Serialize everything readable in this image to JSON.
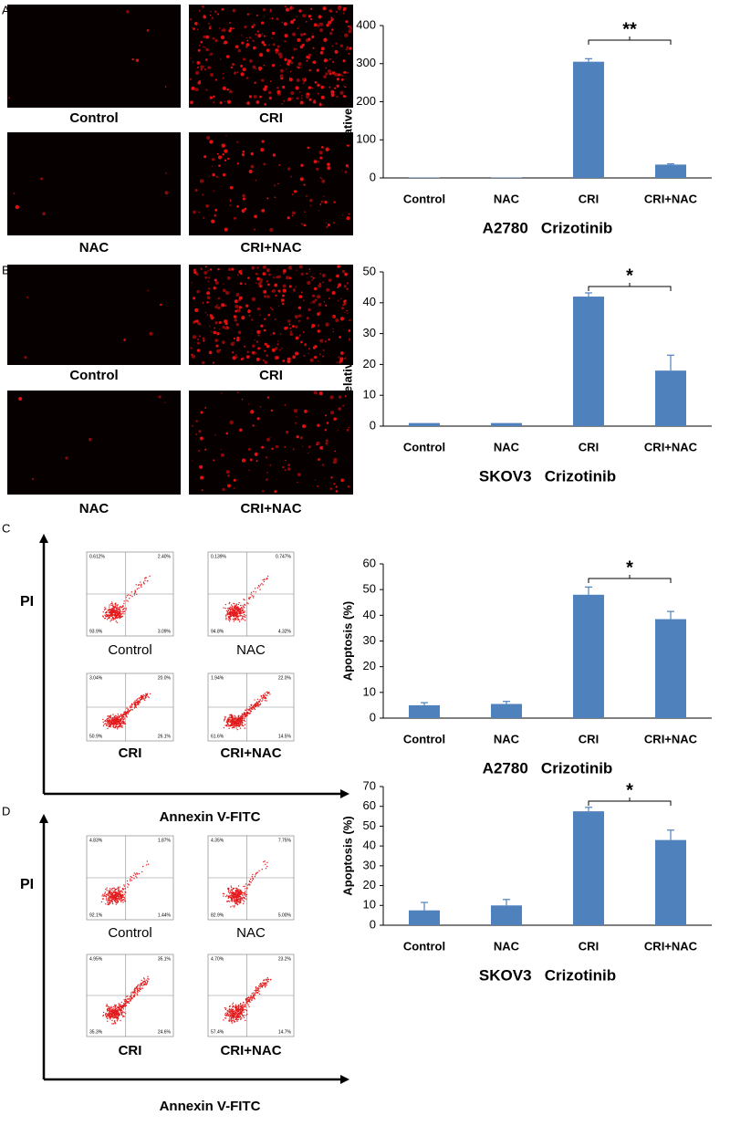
{
  "panels": [
    {
      "letter": "A",
      "image_labels": [
        "Control",
        "CRI",
        "NAC",
        "CRI+NAC"
      ]
    },
    {
      "letter": "B",
      "image_labels": [
        "Control",
        "CRI",
        "NAC",
        "CRI+NAC"
      ]
    },
    {
      "letter": "C",
      "image_labels": [
        "Control",
        "NAC",
        "CRI",
        "CRI+NAC"
      ],
      "y_axis": "PI",
      "x_axis": "Annexin V-FITC",
      "quadrants": [
        [
          "0.612%",
          "2.40%",
          "93.9%",
          "3.09%"
        ],
        [
          "0.139%",
          "0.747%",
          "94.8%",
          "4.32%"
        ],
        [
          "3.04%",
          "20.0%",
          "50.9%",
          "26.1%"
        ],
        [
          "1.94%",
          "22.0%",
          "61.6%",
          "14.5%"
        ]
      ]
    },
    {
      "letter": "D",
      "image_labels": [
        "Control",
        "NAC",
        "CRI",
        "CRI+NAC"
      ],
      "y_axis": "PI",
      "x_axis": "Annexin V-FITC",
      "quadrants": [
        [
          "4.83%",
          "1.87%",
          "92.1%",
          "1.44%"
        ],
        [
          "4.35%",
          "7.75%",
          "82.9%",
          "5.00%"
        ],
        [
          "4.95%",
          "35.1%",
          "35.3%",
          "24.6%"
        ],
        [
          "4.70%",
          "23.2%",
          "57.4%",
          "14.7%"
        ]
      ]
    }
  ],
  "chart_data": [
    {
      "type": "bar",
      "ylabel": "Relative ROS level",
      "xlabel": "A2780   Crizotinib",
      "categories": [
        "Control",
        "NAC",
        "CRI",
        "CRI+NAC"
      ],
      "values": [
        1,
        1,
        305,
        35
      ],
      "errors": [
        0,
        0,
        8,
        2
      ],
      "color": "#4f81bd",
      "ylim": [
        0,
        400
      ],
      "yticks": [
        0,
        100,
        200,
        300,
        400
      ],
      "annotation": "**"
    },
    {
      "type": "bar",
      "ylabel": "Relative ROS level",
      "xlabel": "SKOV3   Crizotinib",
      "categories": [
        "Control",
        "NAC",
        "CRI",
        "CRI+NAC"
      ],
      "values": [
        1,
        1,
        42,
        18
      ],
      "errors": [
        0,
        0,
        1.2,
        5
      ],
      "color": "#4f81bd",
      "ylim": [
        0,
        50
      ],
      "yticks": [
        0,
        10,
        20,
        30,
        40,
        50
      ],
      "annotation": "*"
    },
    {
      "type": "bar",
      "ylabel": "Apoptosis (%)",
      "xlabel": "A2780   Crizotinib",
      "categories": [
        "Control",
        "NAC",
        "CRI",
        "CRI+NAC"
      ],
      "values": [
        5,
        5.5,
        48,
        38.5
      ],
      "errors": [
        1,
        1,
        3,
        3
      ],
      "color": "#4f81bd",
      "ylim": [
        0,
        60
      ],
      "yticks": [
        0,
        10,
        20,
        30,
        40,
        50,
        60
      ],
      "annotation": "*"
    },
    {
      "type": "bar",
      "ylabel": "Apoptosis (%)",
      "xlabel": "SKOV3   Crizotinib",
      "categories": [
        "Control",
        "NAC",
        "CRI",
        "CRI+NAC"
      ],
      "values": [
        7.5,
        10,
        57.5,
        43
      ],
      "errors": [
        4,
        3,
        2,
        5
      ],
      "color": "#4f81bd",
      "ylim": [
        0,
        70
      ],
      "yticks": [
        0,
        10,
        20,
        30,
        40,
        50,
        60,
        70
      ],
      "annotation": "*"
    }
  ]
}
